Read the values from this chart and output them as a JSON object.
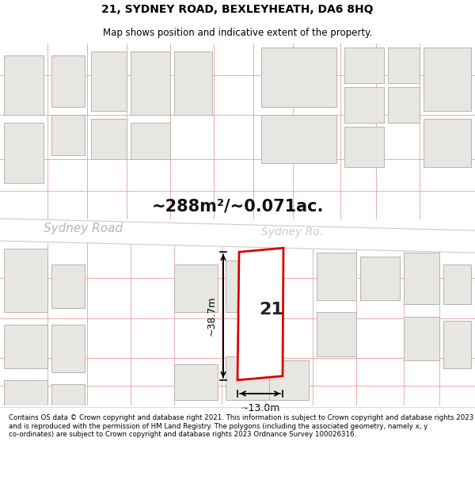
{
  "title_line1": "21, SYDNEY ROAD, BEXLEYHEATH, DA6 8HQ",
  "title_line2": "Map shows position and indicative extent of the property.",
  "area_text": "~288m²/~0.071ac.",
  "label_number": "21",
  "dim_width": "~13.0m",
  "dim_height": "~38.7m",
  "street_label_left": "Sydney Road",
  "street_label_right": "Sydney Ro...",
  "footer_text": "Contains OS data © Crown copyright and database right 2021. This information is subject to Crown copyright and database rights 2023 and is reproduced with the permission of HM Land Registry. The polygons (including the associated geometry, namely x, y co-ordinates) are subject to Crown copyright and database rights 2023 Ordnance Survey 100026316.",
  "map_bg": "#f8f7f5",
  "building_fill": "#e8e6e2",
  "building_stroke": "#b8b4ae",
  "plot_line_color": "#e8a0a0",
  "highlight_fill": "#ffffff",
  "highlight_stroke": "#dd0000",
  "road_bg": "#ffffff",
  "road_label_color": "#aaaaaa",
  "road_line_color": "#cccccc",
  "title_color": "#000000",
  "footer_color": "#000000",
  "title_fontsize": 10,
  "subtitle_fontsize": 8.5,
  "area_fontsize": 15,
  "label_fontsize": 16,
  "dim_fontsize": 9,
  "road_fontsize": 11,
  "footer_fontsize": 6.2
}
